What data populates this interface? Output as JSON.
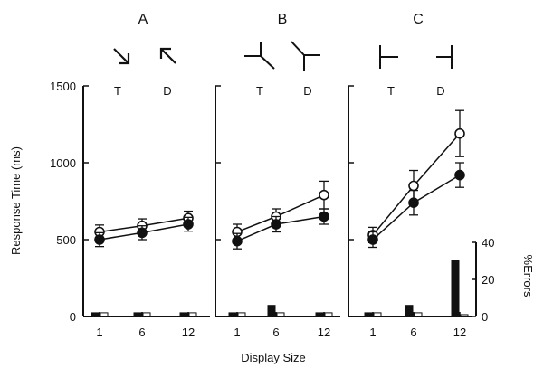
{
  "chart_data": {
    "type": "line",
    "x_categories": [
      "1",
      "6",
      "12"
    ],
    "xlabel": "Display Size",
    "ylabel": "Response Time (ms)",
    "ylim": [
      0,
      1500
    ],
    "yticks": [
      "0",
      "500",
      "1000",
      "1500"
    ],
    "y2label": "%Errors",
    "y2lim": [
      0,
      40
    ],
    "y2ticks": [
      "0",
      "20",
      "40"
    ],
    "target_label": "T",
    "distractor_label": "D",
    "panels": [
      {
        "title": "A",
        "stimulus_icons": [
          "arrow-down-right-icon",
          "arrow-up-left-icon"
        ],
        "series": [
          {
            "marker": "open-circle",
            "values": [
              550,
              590,
              640
            ],
            "errors": [
              45,
              45,
              45
            ]
          },
          {
            "marker": "filled-circle",
            "values": [
              500,
              545,
              600
            ],
            "errors": [
              45,
              45,
              45
            ]
          }
        ],
        "error_bars": [
          {
            "filled": [
              2,
              2,
              2
            ],
            "open": [
              2,
              2,
              2
            ]
          }
        ]
      },
      {
        "title": "B",
        "stimulus_icons": [
          "y-junction-rotated-left-icon",
          "y-junction-rotated-right-icon"
        ],
        "series": [
          {
            "marker": "open-circle",
            "values": [
              550,
              650,
              790
            ],
            "errors": [
              50,
              50,
              90
            ]
          },
          {
            "marker": "filled-circle",
            "values": [
              490,
              600,
              650
            ],
            "errors": [
              50,
              50,
              50
            ]
          }
        ],
        "error_bars": [
          {
            "filled": [
              2,
              6,
              2
            ],
            "open": [
              2,
              2,
              2
            ]
          }
        ]
      },
      {
        "title": "C",
        "stimulus_icons": [
          "tee-rotated-left-icon",
          "tee-rotated-right-icon"
        ],
        "series": [
          {
            "marker": "open-circle",
            "values": [
              530,
              850,
              1190
            ],
            "errors": [
              50,
              100,
              150
            ]
          },
          {
            "marker": "filled-circle",
            "values": [
              500,
              740,
              920
            ],
            "errors": [
              50,
              80,
              80
            ]
          }
        ],
        "error_bars": [
          {
            "filled": [
              2,
              6,
              30
            ],
            "open": [
              2,
              2,
              1
            ]
          }
        ]
      }
    ]
  }
}
